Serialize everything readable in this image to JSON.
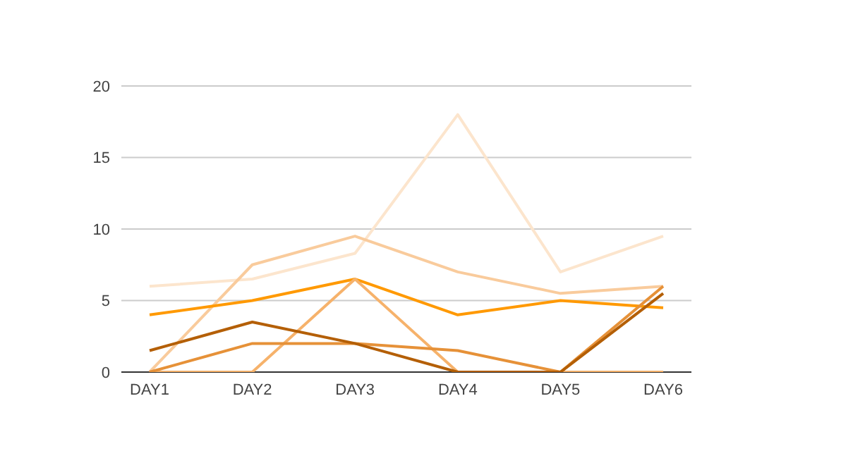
{
  "chart_data": {
    "type": "line",
    "categories": [
      "DAY1",
      "DAY2",
      "DAY3",
      "DAY4",
      "DAY5",
      "DAY6"
    ],
    "series": [
      {
        "color": "#fce5cd",
        "values": [
          6,
          6.5,
          8.3,
          18,
          7,
          9.5
        ]
      },
      {
        "color": "#f9cb9c",
        "values": [
          0,
          7.5,
          9.5,
          7,
          5.5,
          6
        ]
      },
      {
        "color": "#ff9900",
        "values": [
          4,
          5,
          6.5,
          4,
          5,
          4.5
        ]
      },
      {
        "color": "#f6b26b",
        "values": [
          0,
          0,
          6.5,
          0,
          0,
          0
        ]
      },
      {
        "color": "#e69138",
        "values": [
          0,
          2,
          2,
          1.5,
          0,
          6
        ]
      },
      {
        "color": "#b45f06",
        "values": [
          1.5,
          3.5,
          2,
          0,
          0,
          5.5
        ]
      }
    ],
    "ylim": [
      0,
      20
    ],
    "yticks": [
      0,
      5,
      10,
      15,
      20
    ],
    "grid": "y",
    "legend": false,
    "marker": "none",
    "line_style": "solid"
  }
}
